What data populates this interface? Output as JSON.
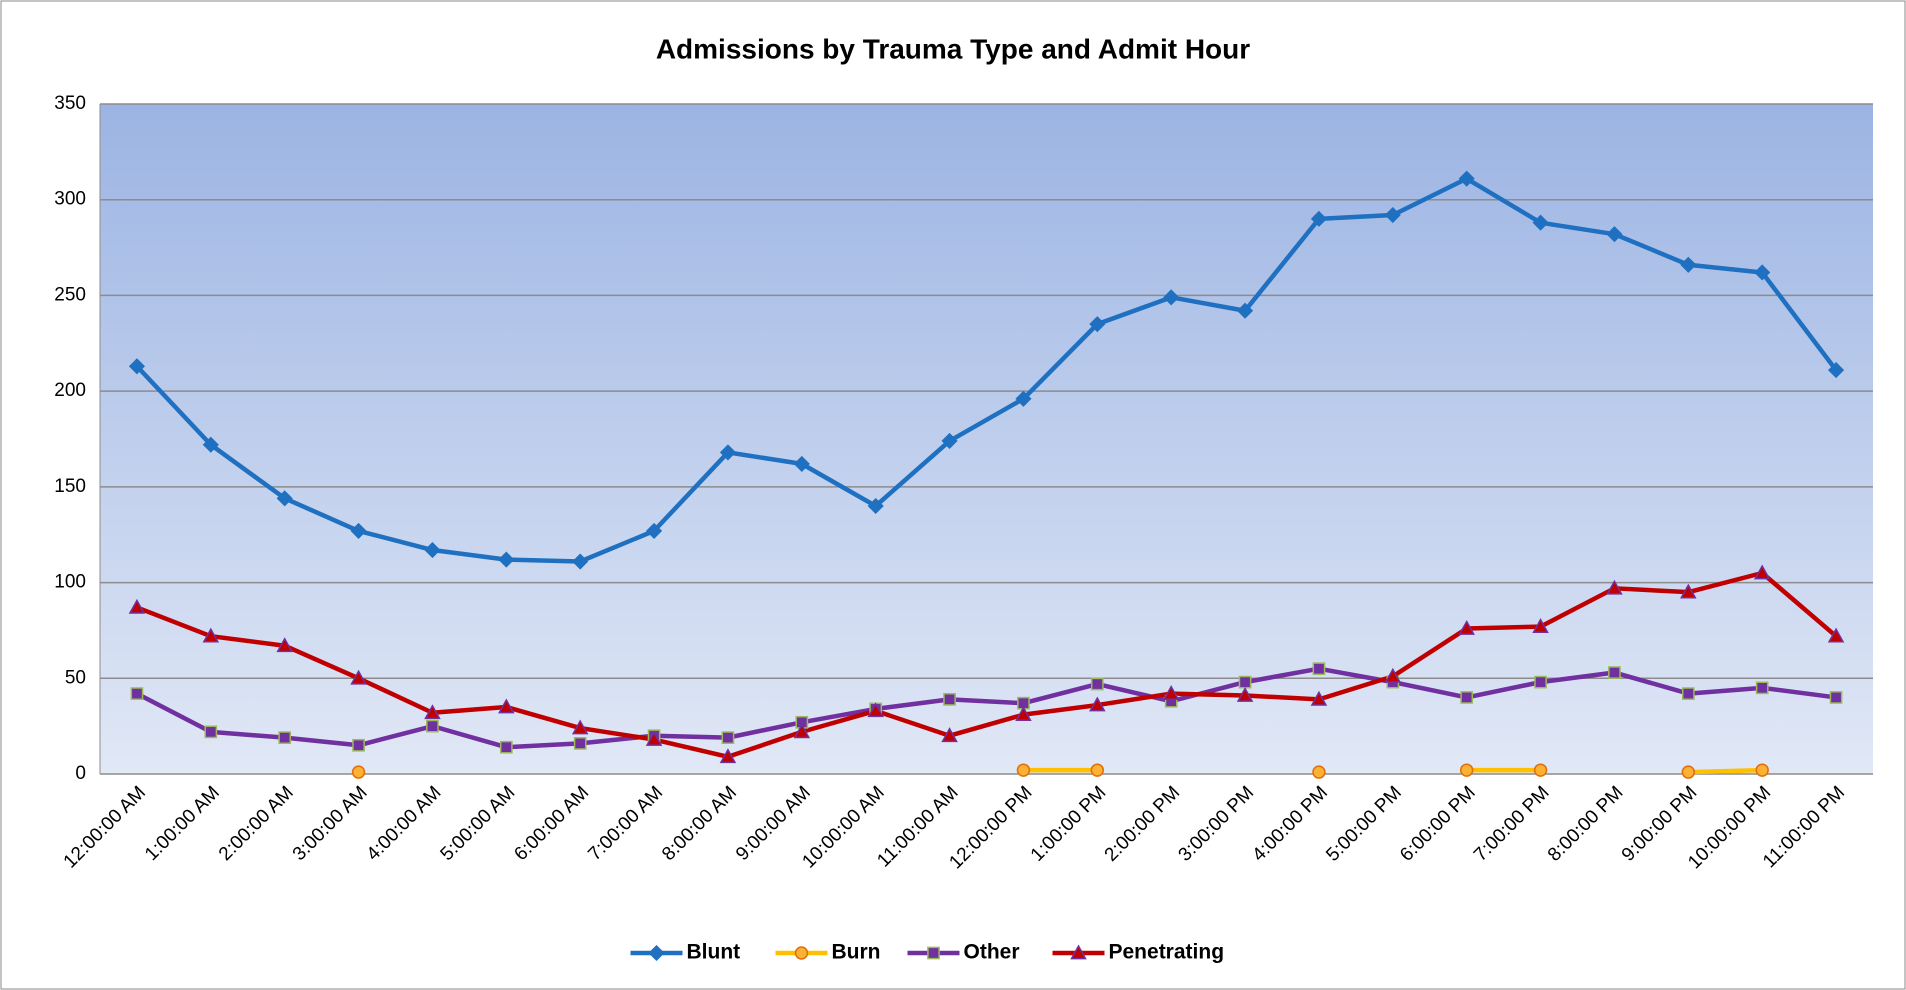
{
  "chart_data": {
    "type": "line",
    "title": "Admissions by Trauma Type and Admit Hour",
    "categories": [
      "12:00:00 AM",
      "1:00:00 AM",
      "2:00:00 AM",
      "3:00:00 AM",
      "4:00:00 AM",
      "5:00:00 AM",
      "6:00:00 AM",
      "7:00:00 AM",
      "8:00:00 AM",
      "9:00:00 AM",
      "10:00:00 AM",
      "11:00:00 AM",
      "12:00:00 PM",
      "1:00:00 PM",
      "2:00:00 PM",
      "3:00:00 PM",
      "4:00:00 PM",
      "5:00:00 PM",
      "6:00:00 PM",
      "7:00:00 PM",
      "8:00:00 PM",
      "9:00:00 PM",
      "10:00:00 PM",
      "11:00:00 PM"
    ],
    "series": [
      {
        "name": "Blunt",
        "color": "#1f70c1",
        "marker": "diamond",
        "values": [
          213,
          172,
          144,
          127,
          117,
          112,
          111,
          127,
          168,
          162,
          140,
          174,
          196,
          235,
          249,
          242,
          290,
          292,
          311,
          288,
          282,
          266,
          262,
          211
        ]
      },
      {
        "name": "Burn",
        "color": "#ffc000",
        "marker": "circle",
        "values": [
          null,
          null,
          null,
          1,
          null,
          null,
          null,
          null,
          null,
          null,
          null,
          null,
          2,
          2,
          null,
          null,
          1,
          null,
          2,
          2,
          null,
          1,
          2,
          null
        ]
      },
      {
        "name": "Other",
        "color": "#7030a0",
        "marker": "square",
        "values": [
          42,
          22,
          19,
          15,
          25,
          14,
          16,
          20,
          19,
          27,
          34,
          39,
          37,
          47,
          38,
          48,
          55,
          48,
          40,
          48,
          53,
          42,
          45,
          40
        ]
      },
      {
        "name": "Penetrating",
        "color": "#c00000",
        "marker": "triangle",
        "values": [
          87,
          72,
          67,
          50,
          32,
          35,
          24,
          18,
          9,
          22,
          33,
          20,
          31,
          36,
          42,
          41,
          39,
          51,
          76,
          77,
          97,
          95,
          105,
          72
        ]
      }
    ],
    "ylim": [
      0,
      350
    ],
    "yticks": [
      0,
      50,
      100,
      150,
      200,
      250,
      300,
      350
    ],
    "grid": true,
    "legend": "bottom"
  }
}
